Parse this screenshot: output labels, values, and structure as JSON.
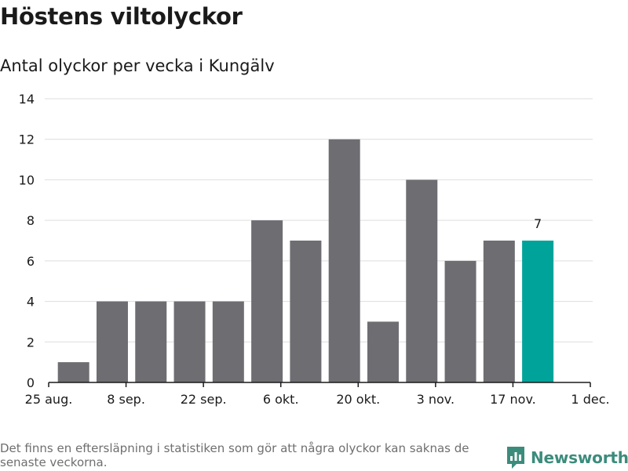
{
  "title": "Höstens viltolyckor",
  "subtitle": "Antal olyckor per vecka i Kungälv",
  "footnote": "Det finns en eftersläpning i statistiken som gör att några olyckor kan saknas de senaste veckorna.",
  "brand": {
    "name": "Newsworthy",
    "icon": "newsworthy-logo-icon",
    "color": "#3c8c7c"
  },
  "chart_data": {
    "type": "bar",
    "title": "Höstens viltolyckor",
    "subtitle": "Antal olyckor per vecka i Kungälv",
    "x_ticks": [
      "25 aug.",
      "8 sep.",
      "22 sep.",
      "6 okt.",
      "20 okt.",
      "3 nov.",
      "17 nov.",
      "1 dec."
    ],
    "y_ticks": [
      0,
      2,
      4,
      6,
      8,
      10,
      12,
      14
    ],
    "ylim": [
      0,
      14
    ],
    "grid": true,
    "bar_color": "#6e6d72",
    "highlight_color": "#00a39a",
    "bars": [
      {
        "week_start": "2019-08-26",
        "value": 1
      },
      {
        "week_start": "2019-09-02",
        "value": 4
      },
      {
        "week_start": "2019-09-09",
        "value": 4
      },
      {
        "week_start": "2019-09-16",
        "value": 4
      },
      {
        "week_start": "2019-09-23",
        "value": 4
      },
      {
        "week_start": "2019-09-30",
        "value": 8
      },
      {
        "week_start": "2019-10-07",
        "value": 7
      },
      {
        "week_start": "2019-10-14",
        "value": 12
      },
      {
        "week_start": "2019-10-21",
        "value": 3
      },
      {
        "week_start": "2019-10-28",
        "value": 10
      },
      {
        "week_start": "2019-11-04",
        "value": 6
      },
      {
        "week_start": "2019-11-11",
        "value": 7
      },
      {
        "week_start": "2019-11-18",
        "value": 7,
        "highlight": true,
        "label": "7"
      }
    ]
  }
}
